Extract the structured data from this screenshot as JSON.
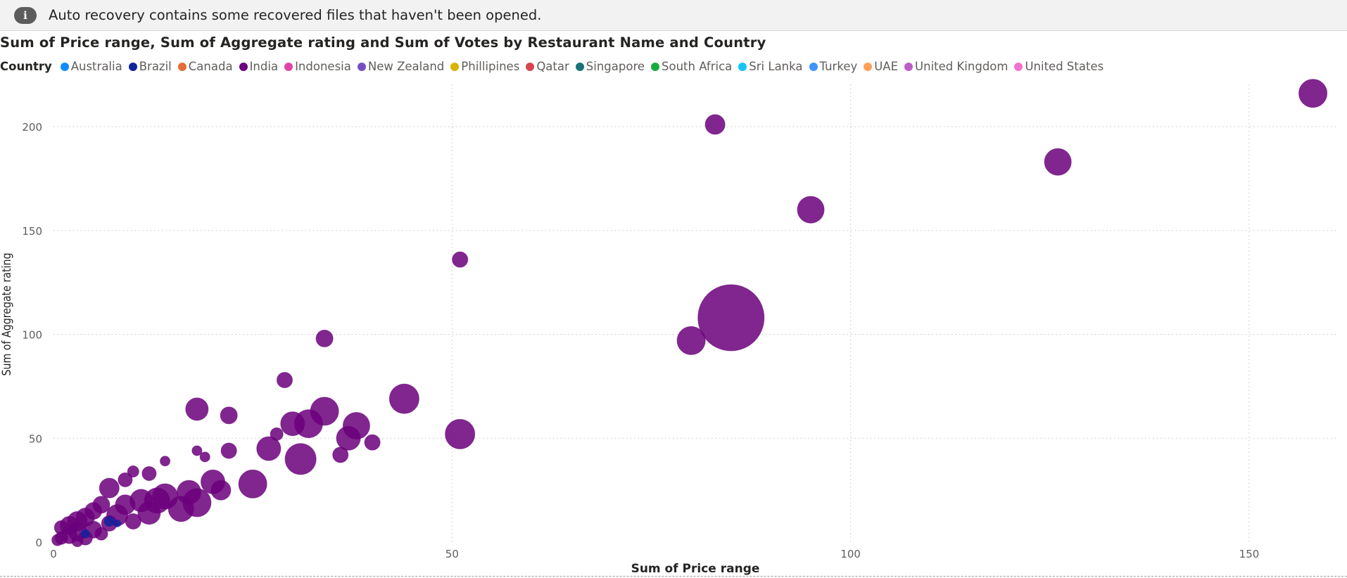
{
  "notice": {
    "icon": "info-icon",
    "text": "Auto recovery contains some recovered files that haven't been opened."
  },
  "chart_data": {
    "type": "scatter",
    "title": "Sum of Price range, Sum of Aggregate rating and Sum of Votes by Restaurant Name and Country",
    "xlabel": "Sum of Price range",
    "ylabel": "Sum of Aggregate rating",
    "size_label": "Sum of Votes",
    "xlim": [
      0,
      160
    ],
    "ylim": [
      0,
      220
    ],
    "xticks": [
      0,
      50,
      100,
      150
    ],
    "yticks": [
      0,
      50,
      100,
      150,
      200
    ],
    "grid": true,
    "legend_title": "Country",
    "legend_position": "top-left",
    "legend": [
      {
        "name": "Australia",
        "color": "#118dff"
      },
      {
        "name": "Brazil",
        "color": "#12239e"
      },
      {
        "name": "Canada",
        "color": "#e66c37"
      },
      {
        "name": "India",
        "color": "#6b007b"
      },
      {
        "name": "Indonesia",
        "color": "#e044a7"
      },
      {
        "name": "New Zealand",
        "color": "#744ec2"
      },
      {
        "name": "Phillipines",
        "color": "#d9b300"
      },
      {
        "name": "Qatar",
        "color": "#d64550"
      },
      {
        "name": "Singapore",
        "color": "#197278"
      },
      {
        "name": "South Africa",
        "color": "#1aab40"
      },
      {
        "name": "Sri Lanka",
        "color": "#15c6f4"
      },
      {
        "name": "Turkey",
        "color": "#4092ff"
      },
      {
        "name": "UAE",
        "color": "#ffa058"
      },
      {
        "name": "United Kingdom",
        "color": "#be5dc9"
      },
      {
        "name": "United States",
        "color": "#f472d0"
      }
    ],
    "series": [
      {
        "name": "India",
        "color": "#6b007b",
        "points": [
          {
            "x": 158,
            "y": 216,
            "size": 20
          },
          {
            "x": 83,
            "y": 201,
            "size": 14
          },
          {
            "x": 126,
            "y": 183,
            "size": 19
          },
          {
            "x": 95,
            "y": 160,
            "size": 19
          },
          {
            "x": 51,
            "y": 136,
            "size": 11
          },
          {
            "x": 85,
            "y": 108,
            "size": 47
          },
          {
            "x": 80,
            "y": 97,
            "size": 20
          },
          {
            "x": 34,
            "y": 98,
            "size": 12
          },
          {
            "x": 29,
            "y": 78,
            "size": 11
          },
          {
            "x": 44,
            "y": 69,
            "size": 21
          },
          {
            "x": 18,
            "y": 64,
            "size": 16
          },
          {
            "x": 22,
            "y": 61,
            "size": 12
          },
          {
            "x": 34,
            "y": 63,
            "size": 20
          },
          {
            "x": 32,
            "y": 57,
            "size": 20
          },
          {
            "x": 30,
            "y": 57,
            "size": 17
          },
          {
            "x": 38,
            "y": 56,
            "size": 19
          },
          {
            "x": 51,
            "y": 52,
            "size": 21
          },
          {
            "x": 28,
            "y": 52,
            "size": 9
          },
          {
            "x": 37,
            "y": 50,
            "size": 17
          },
          {
            "x": 40,
            "y": 48,
            "size": 11
          },
          {
            "x": 27,
            "y": 45,
            "size": 17
          },
          {
            "x": 22,
            "y": 44,
            "size": 11
          },
          {
            "x": 31,
            "y": 40,
            "size": 22
          },
          {
            "x": 36,
            "y": 42,
            "size": 11
          },
          {
            "x": 18,
            "y": 44,
            "size": 7
          },
          {
            "x": 19,
            "y": 41,
            "size": 7
          },
          {
            "x": 14,
            "y": 39,
            "size": 7
          },
          {
            "x": 25,
            "y": 28,
            "size": 20
          },
          {
            "x": 20,
            "y": 29,
            "size": 17
          },
          {
            "x": 21,
            "y": 25,
            "size": 14
          },
          {
            "x": 12,
            "y": 33,
            "size": 10
          },
          {
            "x": 10,
            "y": 34,
            "size": 8
          },
          {
            "x": 9,
            "y": 30,
            "size": 10
          },
          {
            "x": 7,
            "y": 26,
            "size": 14
          },
          {
            "x": 14,
            "y": 22,
            "size": 18
          },
          {
            "x": 17,
            "y": 24,
            "size": 17
          },
          {
            "x": 18,
            "y": 19,
            "size": 20
          },
          {
            "x": 13,
            "y": 20,
            "size": 18
          },
          {
            "x": 11,
            "y": 20,
            "size": 16
          },
          {
            "x": 16,
            "y": 16,
            "size": 18
          },
          {
            "x": 12,
            "y": 14,
            "size": 16
          },
          {
            "x": 9,
            "y": 18,
            "size": 14
          },
          {
            "x": 6,
            "y": 18,
            "size": 12
          },
          {
            "x": 8,
            "y": 13,
            "size": 15
          },
          {
            "x": 5,
            "y": 15,
            "size": 12
          },
          {
            "x": 4,
            "y": 12,
            "size": 13
          },
          {
            "x": 3,
            "y": 10,
            "size": 14
          },
          {
            "x": 2,
            "y": 8,
            "size": 13
          },
          {
            "x": 1,
            "y": 7,
            "size": 10
          },
          {
            "x": 3,
            "y": 5,
            "size": 13
          },
          {
            "x": 5,
            "y": 6,
            "size": 12
          },
          {
            "x": 7,
            "y": 9,
            "size": 11
          },
          {
            "x": 10,
            "y": 10,
            "size": 11
          },
          {
            "x": 2,
            "y": 3,
            "size": 11
          },
          {
            "x": 1,
            "y": 2,
            "size": 9
          },
          {
            "x": 4,
            "y": 2,
            "size": 10
          },
          {
            "x": 6,
            "y": 4,
            "size": 9
          },
          {
            "x": 0.5,
            "y": 1,
            "size": 8
          },
          {
            "x": 3,
            "y": 0.5,
            "size": 8
          }
        ]
      },
      {
        "name": "Brazil",
        "color": "#12239e",
        "points": [
          {
            "x": 7,
            "y": 10,
            "size": 7
          },
          {
            "x": 4,
            "y": 4,
            "size": 6
          },
          {
            "x": 8,
            "y": 9,
            "size": 5
          }
        ]
      }
    ]
  }
}
